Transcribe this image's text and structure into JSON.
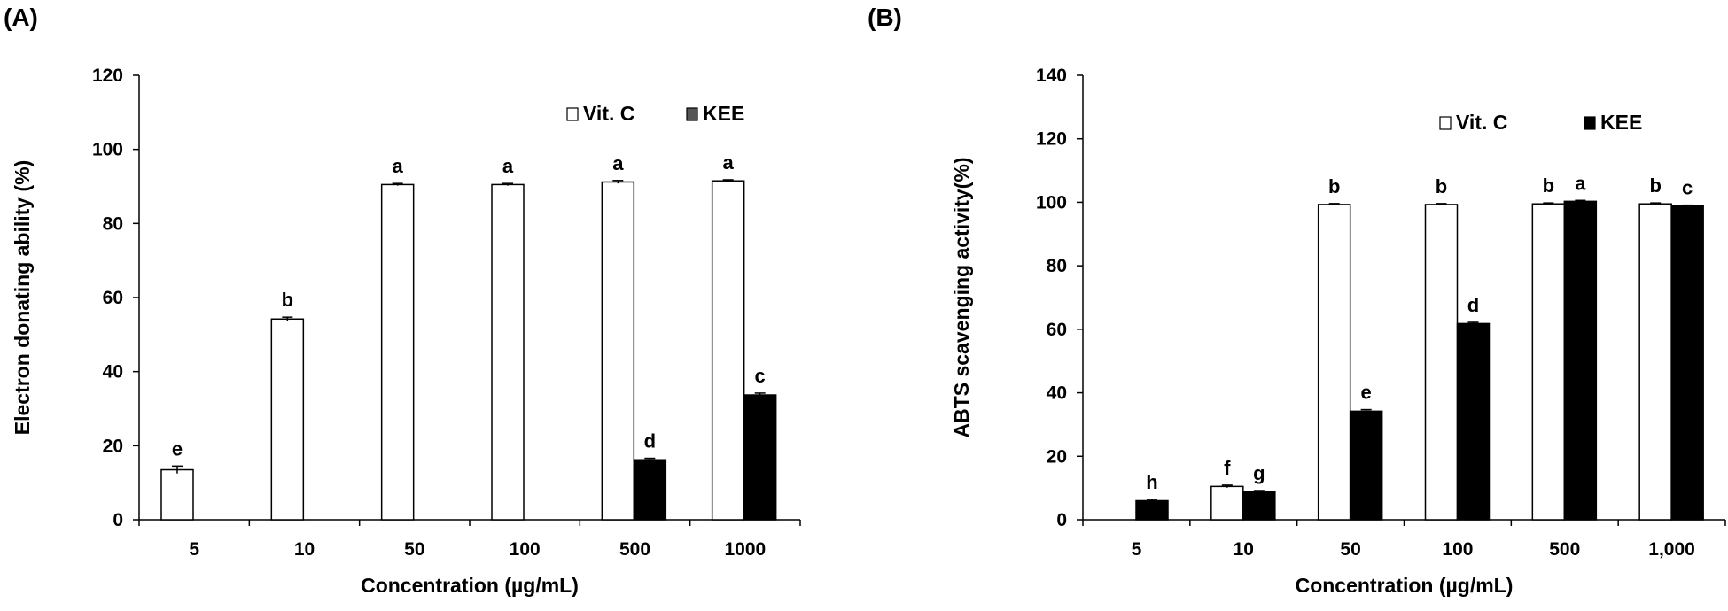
{
  "chart_data": [
    {
      "panel_label": "(A)",
      "type": "bar",
      "categories": [
        "5",
        "10",
        "50",
        "100",
        "500",
        "1000"
      ],
      "xlabel": "Concentration (µg/mL)",
      "ylabel": "Electron donating ability (%)",
      "ylim": [
        0,
        120
      ],
      "yticks": [
        "0",
        "20",
        "40",
        "60",
        "80",
        "100",
        "120"
      ],
      "grid": false,
      "legend_position": "top-right",
      "series": [
        {
          "name": "Vit. C",
          "color": "#ffffff",
          "legend_fill": "#ffffff",
          "values": [
            13.5,
            54.2,
            90.5,
            90.5,
            91.2,
            91.5
          ],
          "errors": [
            1.0,
            0.5,
            0.3,
            0.3,
            0.4,
            0.3
          ],
          "letters": [
            "e",
            "b",
            "a",
            "a",
            "a",
            "a"
          ]
        },
        {
          "name": "KEE",
          "color": "#000000",
          "legend_fill": "#555555",
          "values": [
            null,
            null,
            null,
            null,
            16.2,
            33.7
          ],
          "errors": [
            0,
            0,
            0,
            0,
            0.4,
            0.5
          ],
          "letters": [
            "",
            "",
            "",
            "",
            "d",
            "c"
          ]
        }
      ]
    },
    {
      "panel_label": "(B)",
      "type": "bar",
      "categories": [
        "5",
        "10",
        "50",
        "100",
        "500",
        "1,000"
      ],
      "xlabel": "Concentration (µg/mL)",
      "ylabel": "ABTS scavenging activity(%)",
      "ylim": [
        0,
        140
      ],
      "yticks": [
        "0",
        "20",
        "40",
        "60",
        "80",
        "100",
        "120",
        "140"
      ],
      "grid": false,
      "legend_position": "top-right",
      "series": [
        {
          "name": "Vit. C",
          "color": "#ffffff",
          "legend_fill": "#ffffff",
          "values": [
            null,
            10.5,
            99.3,
            99.3,
            99.5,
            99.5
          ],
          "errors": [
            0,
            0.4,
            0.3,
            0.3,
            0.3,
            0.3
          ],
          "letters": [
            "",
            "f",
            "b",
            "b",
            "b",
            "b"
          ]
        },
        {
          "name": "KEE",
          "color": "#000000",
          "legend_fill": "#000000",
          "values": [
            6.0,
            8.8,
            34.2,
            61.8,
            100.3,
            98.8
          ],
          "errors": [
            0.4,
            0.4,
            0.5,
            0.4,
            0.3,
            0.3
          ],
          "letters": [
            "h",
            "g",
            "e",
            "d",
            "a",
            "c"
          ]
        }
      ]
    }
  ]
}
